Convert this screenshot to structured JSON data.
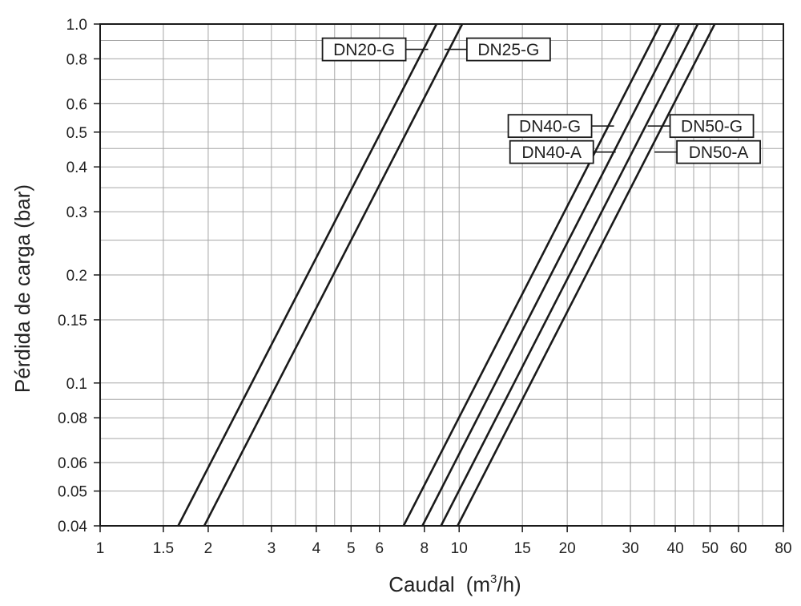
{
  "chart_data": {
    "type": "line",
    "x_scale": "log",
    "y_scale": "log",
    "xlim": [
      1,
      80
    ],
    "ylim": [
      0.04,
      1.0
    ],
    "xlabel_main": "Caudal",
    "xlabel_unit_pre": "(m",
    "xlabel_unit_sup": "3",
    "xlabel_unit_post": "/h)",
    "ylabel": "Pérdida de carga (bar)",
    "grid": true,
    "x_ticks": [
      {
        "value": 1,
        "label": "1"
      },
      {
        "value": 1.5,
        "label": "1.5"
      },
      {
        "value": 2,
        "label": "2"
      },
      {
        "value": 3,
        "label": "3"
      },
      {
        "value": 4,
        "label": "4"
      },
      {
        "value": 5,
        "label": "5"
      },
      {
        "value": 6,
        "label": "6"
      },
      {
        "value": 8,
        "label": "8"
      },
      {
        "value": 10,
        "label": "10"
      },
      {
        "value": 15,
        "label": "15"
      },
      {
        "value": 20,
        "label": "20"
      },
      {
        "value": 30,
        "label": "30"
      },
      {
        "value": 40,
        "label": "40"
      },
      {
        "value": 50,
        "label": "50"
      },
      {
        "value": 60,
        "label": "60"
      },
      {
        "value": 80,
        "label": "80"
      }
    ],
    "y_ticks": [
      {
        "value": 0.04,
        "label": "0.04"
      },
      {
        "value": 0.05,
        "label": "0.05"
      },
      {
        "value": 0.06,
        "label": "0.06"
      },
      {
        "value": 0.08,
        "label": "0.08"
      },
      {
        "value": 0.1,
        "label": "0.1"
      },
      {
        "value": 0.15,
        "label": "0.15"
      },
      {
        "value": 0.2,
        "label": "0.2"
      },
      {
        "value": 0.3,
        "label": "0.3"
      },
      {
        "value": 0.4,
        "label": "0.4"
      },
      {
        "value": 0.5,
        "label": "0.5"
      },
      {
        "value": 0.6,
        "label": "0.6"
      },
      {
        "value": 0.8,
        "label": "0.8"
      },
      {
        "value": 1.0,
        "label": "1.0"
      }
    ],
    "x_gridlines": [
      1,
      1.5,
      2,
      2.5,
      3,
      3.5,
      4,
      4.5,
      5,
      6,
      7,
      8,
      9,
      10,
      15,
      20,
      25,
      30,
      35,
      40,
      45,
      50,
      60,
      70,
      80
    ],
    "y_gridlines": [
      0.04,
      0.05,
      0.06,
      0.07,
      0.08,
      0.09,
      0.1,
      0.15,
      0.2,
      0.25,
      0.3,
      0.35,
      0.4,
      0.45,
      0.5,
      0.6,
      0.7,
      0.8,
      0.9,
      1.0
    ],
    "series": [
      {
        "name": "DN20-G",
        "points": [
          [
            1.65,
            0.04
          ],
          [
            8.65,
            1.0
          ]
        ]
      },
      {
        "name": "DN25-G",
        "points": [
          [
            1.95,
            0.04
          ],
          [
            10.2,
            1.0
          ]
        ]
      },
      {
        "name": "DN40-G",
        "points": [
          [
            7.0,
            0.04
          ],
          [
            36.4,
            1.0
          ]
        ]
      },
      {
        "name": "DN40-A",
        "points": [
          [
            7.9,
            0.04
          ],
          [
            41.0,
            1.0
          ]
        ]
      },
      {
        "name": "DN50-G",
        "points": [
          [
            8.9,
            0.04
          ],
          [
            46.2,
            1.0
          ]
        ]
      },
      {
        "name": "DN50-A",
        "points": [
          [
            9.9,
            0.04
          ],
          [
            51.5,
            1.0
          ]
        ]
      }
    ],
    "legend": [
      {
        "series": "DN20-G",
        "side": "left",
        "at": [
          8.2,
          0.85
        ]
      },
      {
        "series": "DN25-G",
        "side": "right",
        "at": [
          9.1,
          0.85
        ]
      },
      {
        "series": "DN40-G",
        "side": "left",
        "at": [
          27.0,
          0.52
        ]
      },
      {
        "series": "DN40-A",
        "side": "left",
        "at": [
          27.3,
          0.44
        ]
      },
      {
        "series": "DN50-G",
        "side": "right",
        "at": [
          33.5,
          0.52
        ]
      },
      {
        "series": "DN50-A",
        "side": "right",
        "at": [
          35.0,
          0.44
        ]
      }
    ]
  }
}
